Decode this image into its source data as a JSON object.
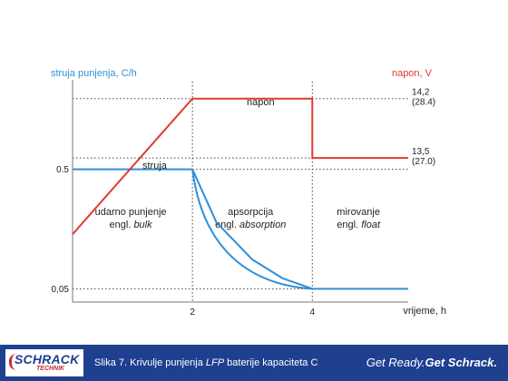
{
  "chart_data": {
    "type": "line",
    "left_axis_label": "struja punjenja, C/h",
    "right_axis_label": "napon, V",
    "xlabel": "vrijeme, h",
    "x_ticks": [
      "2",
      "4"
    ],
    "left_ticks": [
      "0.5",
      "0,05"
    ],
    "right_ticks": [
      {
        "value": "14,2",
        "sub": "(28.4)"
      },
      {
        "value": "13,5",
        "sub": "(27.0)"
      }
    ],
    "phases": [
      {
        "name": "udarno punjenje",
        "engl_prefix": "engl.",
        "engl_term": "bulk"
      },
      {
        "name": "apsorpcija",
        "engl_prefix": "engl.",
        "engl_term": "absorption"
      },
      {
        "name": "mirovanje",
        "engl_prefix": "engl.",
        "engl_term": "float"
      }
    ],
    "series": [
      {
        "name": "struja",
        "color": "#2e8fd8",
        "unit": "C/h",
        "points": [
          [
            0,
            0.5
          ],
          [
            2,
            0.5
          ],
          [
            2.4,
            0.3
          ],
          [
            3,
            0.16
          ],
          [
            3.5,
            0.09
          ],
          [
            4,
            0.05
          ],
          [
            5.6,
            0.05
          ]
        ]
      },
      {
        "name": "napon",
        "color": "#e03a30",
        "unit": "V",
        "points": [
          [
            0,
            12.6
          ],
          [
            2,
            14.2
          ],
          [
            4,
            14.2
          ],
          [
            4,
            13.5
          ],
          [
            5.6,
            13.5
          ]
        ]
      }
    ],
    "xlim": [
      0,
      5.6
    ],
    "left_ylim": [
      0,
      0.83
    ],
    "right_ylim": [
      11.8,
      14.4
    ],
    "grid": "dotted reference lines at ticks"
  },
  "footer": {
    "logo_main": "SCHRACK",
    "logo_sub": "TECHNIK",
    "caption_prefix": "Slika 7.  Krivulje punjenja ",
    "caption_italic": "LFP",
    "caption_suffix": " baterije kapaciteta C",
    "slogan_regular": "Get Ready.",
    "slogan_bold": "Get Schrack."
  }
}
